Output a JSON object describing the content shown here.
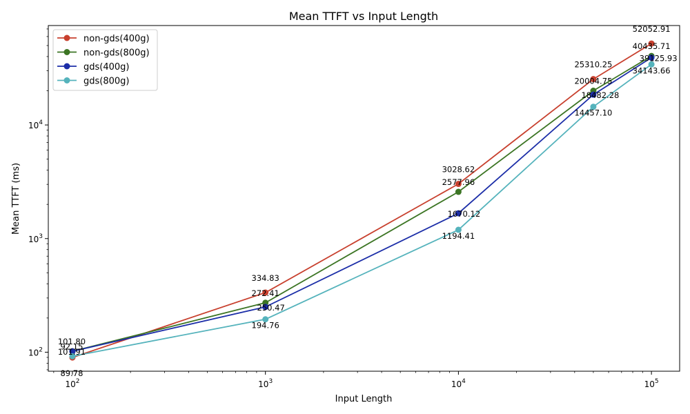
{
  "chart_data": {
    "type": "line",
    "title": "Mean TTFT vs Input Length",
    "xlabel": "Input Length",
    "ylabel": "Mean TTFT (ms)",
    "xscale": "log",
    "yscale": "log",
    "xlim": [
      75,
      140000
    ],
    "ylim": [
      68,
      75000
    ],
    "x": [
      100,
      1000,
      10000,
      50000,
      100000
    ],
    "x_ticks": [
      {
        "value": 100,
        "base": "10",
        "exp": "2"
      },
      {
        "value": 1000,
        "base": "10",
        "exp": "3"
      },
      {
        "value": 10000,
        "base": "10",
        "exp": "4"
      },
      {
        "value": 100000,
        "base": "10",
        "exp": "5"
      }
    ],
    "y_ticks": [
      {
        "value": 100,
        "base": "10",
        "exp": "2"
      },
      {
        "value": 1000,
        "base": "10",
        "exp": "3"
      },
      {
        "value": 10000,
        "base": "10",
        "exp": "4"
      }
    ],
    "legend_position": "top-left",
    "series": [
      {
        "name": "non-gds(400g)",
        "color": "#c8402e",
        "values": [
          89.78,
          334.83,
          3028.62,
          25310.25,
          52052.91
        ],
        "labels": [
          "89.78",
          "334.83",
          "3028.62",
          "25310.25",
          "52052.91"
        ]
      },
      {
        "name": "non-gds(800g)",
        "color": "#3c7524",
        "values": [
          101.91,
          272.41,
          2577.96,
          20004.75,
          40435.71
        ],
        "labels": [
          "101.91",
          "272.41",
          "2577.96",
          "20004.75",
          "40435.71"
        ]
      },
      {
        "name": "gds(400g)",
        "color": "#1c2ea8",
        "values": [
          101.8,
          250.47,
          1670.12,
          18482.28,
          39125.93
        ],
        "labels": [
          "101.80",
          "250.47",
          "1670.12",
          "18482.28",
          "39125.93"
        ]
      },
      {
        "name": "gds(800g)",
        "color": "#55b3bc",
        "values": [
          92.15,
          194.76,
          1194.41,
          14457.1,
          34143.66
        ],
        "labels": [
          "92.15",
          "194.76",
          "1194.41",
          "14457.10",
          "34143.66"
        ]
      }
    ]
  }
}
